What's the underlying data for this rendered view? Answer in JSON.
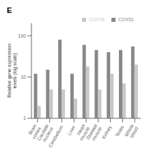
{
  "chart_data": {
    "type": "bar",
    "title": "E",
    "ylabel": "Relative gene expression\nlevels (log scale)",
    "categories": [
      "Brain\ncortex",
      "Caudate\nnucleus",
      "Cerebellum",
      "Liver",
      "Heart\nmuscle",
      "Skeletal\nmuscle",
      "Kidney",
      "Testis",
      "Whole\nblood"
    ],
    "series": [
      {
        "name": "COX51",
        "color": "#888888",
        "values": [
          12,
          15,
          80,
          12,
          60,
          45,
          40,
          45,
          55
        ]
      },
      {
        "name": "COX18",
        "color": "#c8c8c8",
        "values": [
          2,
          5,
          5,
          3,
          18,
          5,
          12,
          7,
          20
        ]
      }
    ],
    "ylim": [
      1,
      200
    ],
    "yticks": [
      1,
      10,
      100
    ],
    "log": "y",
    "legend": "upper right",
    "grid": false
  }
}
